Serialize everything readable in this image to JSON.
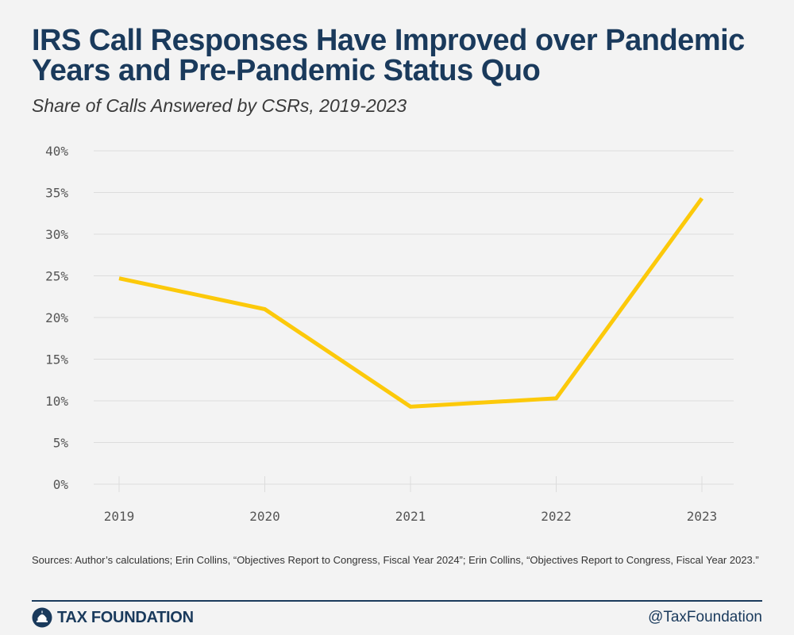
{
  "chart_data": {
    "type": "line",
    "title": "IRS Call Responses Have Improved over Pandemic Years and Pre-Pandemic Status Quo",
    "subtitle": "Share of Calls Answered by CSRs, 2019-2023",
    "categories": [
      "2019",
      "2020",
      "2021",
      "2022",
      "2023"
    ],
    "series": [
      {
        "values": [
          24.7,
          21.0,
          9.3,
          10.3,
          34.3
        ]
      }
    ],
    "ylim": [
      0,
      40
    ],
    "yticks": [
      0,
      5,
      10,
      15,
      20,
      25,
      30,
      35,
      40
    ],
    "ytick_labels": [
      "0%",
      "5%",
      "10%",
      "15%",
      "20%",
      "25%",
      "30%",
      "35%",
      "40%"
    ],
    "xlabel": "",
    "ylabel": "",
    "grid": true,
    "colors": {
      "line": "#fcc90a",
      "grid": "#dcdcdc",
      "title": "#1a3a5c"
    }
  },
  "sources": "Sources: Author’s calculations; Erin Collins, “Objectives Report to Congress, Fiscal Year 2024”; Erin Collins, “Objectives Report to Congress, Fiscal Year 2023.”",
  "footer": {
    "logo_text": "TAX FOUNDATION",
    "handle": "@TaxFoundation"
  }
}
